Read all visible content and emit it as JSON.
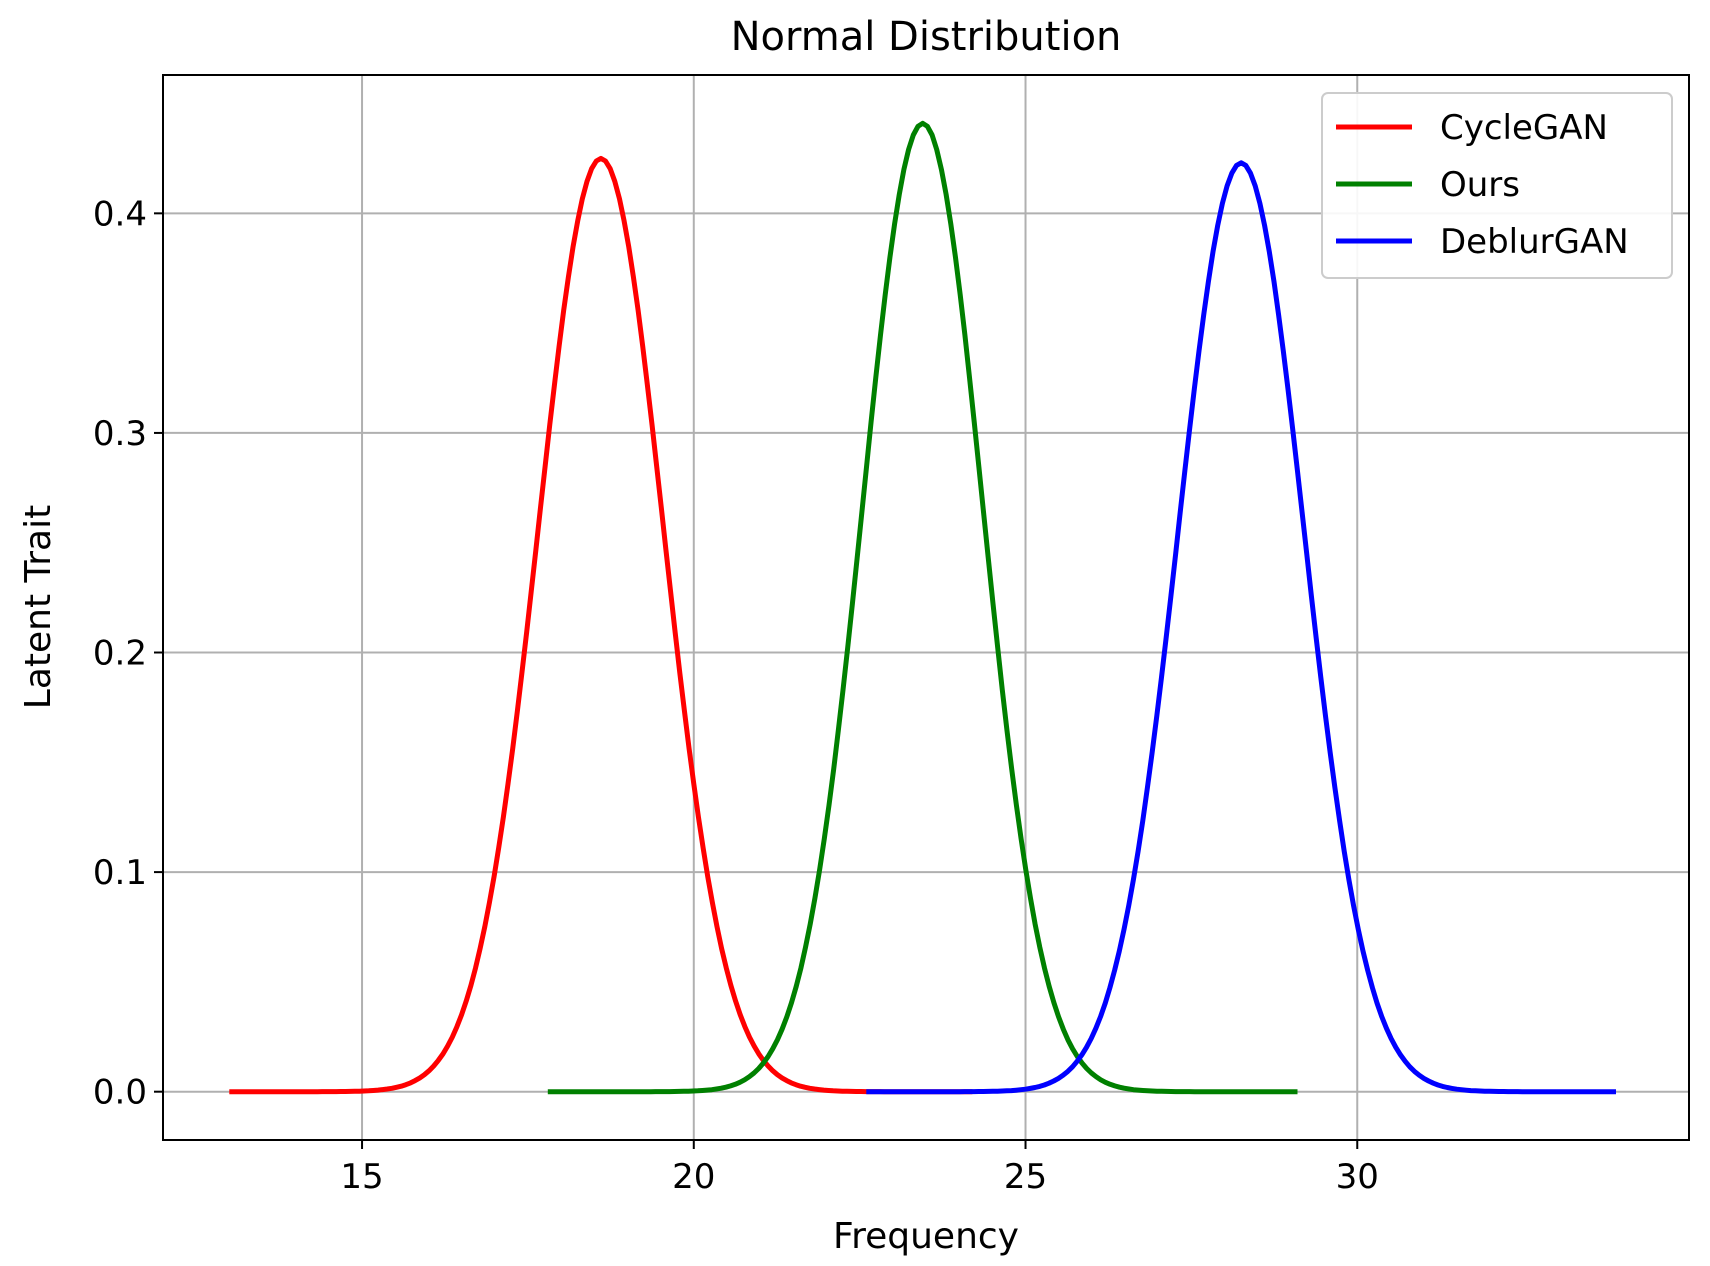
{
  "chart_data": {
    "type": "line",
    "title": "Normal Distribution",
    "xlabel": "Frequency",
    "ylabel": "Latent Trait",
    "xlim": [
      12.0,
      35.0
    ],
    "ylim": [
      -0.022,
      0.463
    ],
    "xticks": [
      15,
      20,
      25,
      30
    ],
    "xtick_labels": [
      "15",
      "20",
      "25",
      "30"
    ],
    "yticks": [
      0.0,
      0.1,
      0.2,
      0.3,
      0.4
    ],
    "ytick_labels": [
      "0.0",
      "0.1",
      "0.2",
      "0.3",
      "0.4"
    ],
    "grid": true,
    "legend_position": "top-right",
    "series": [
      {
        "name": "CycleGAN",
        "color": "#ff0000",
        "distribution": "normal",
        "mean": 18.6,
        "std": 0.94,
        "peak": 0.425,
        "x_range": [
          13.0,
          24.2
        ]
      },
      {
        "name": "Ours",
        "color": "#008000",
        "distribution": "normal",
        "mean": 23.45,
        "std": 0.905,
        "peak": 0.441,
        "x_range": [
          17.8,
          29.1
        ]
      },
      {
        "name": "DeblurGAN",
        "color": "#0000ff",
        "distribution": "normal",
        "mean": 28.25,
        "std": 0.945,
        "peak": 0.423,
        "x_range": [
          22.6,
          33.9
        ]
      }
    ]
  }
}
